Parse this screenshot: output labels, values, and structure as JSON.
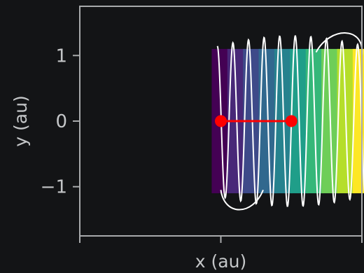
{
  "chart_data": {
    "type": "line",
    "title": "",
    "xlabel": "x (au)",
    "ylabel": "y (au)",
    "xlim": [
      -2.0,
      2.0
    ],
    "ylim": [
      -1.75,
      1.75
    ],
    "x_ticks": [
      -2.0,
      0.0,
      2.0
    ],
    "x_tick_labels": [
      "",
      "",
      ""
    ],
    "y_ticks": [
      -1,
      0,
      1
    ],
    "y_tick_labels": [
      "−1",
      "0",
      "1"
    ],
    "grid": false,
    "legend": "none",
    "colors": {
      "background": "#131416",
      "axes": "#a8aaac",
      "curve": "#ffffff",
      "dipole": "#ff0000",
      "colormap": "viridis"
    },
    "coil": {
      "x_range": [
        0.0,
        2.0
      ],
      "half_width": 0.13,
      "count": 10,
      "y_range": [
        -1.1,
        1.1
      ],
      "loop_half_height": 1.3
    },
    "dipole": {
      "x": [
        0.0,
        1.0
      ],
      "y": [
        0.0,
        0.0
      ]
    }
  }
}
